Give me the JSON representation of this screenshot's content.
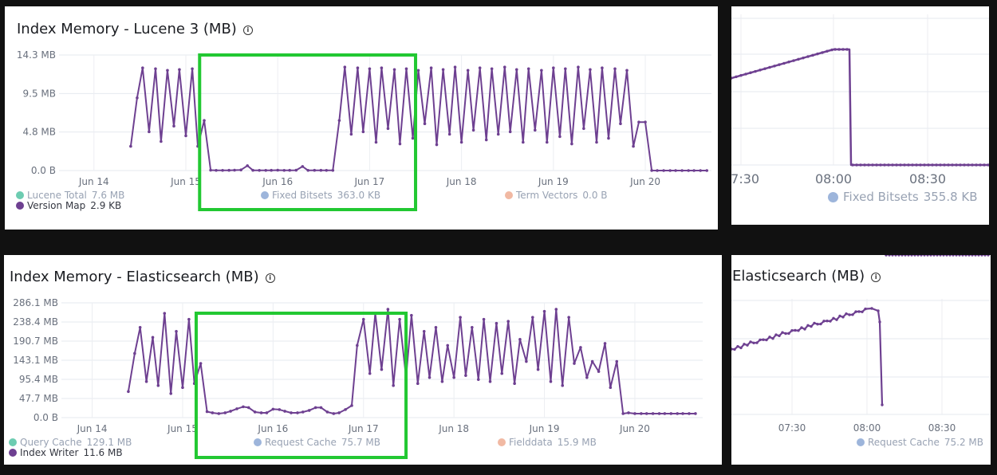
{
  "panels": {
    "lucene": {
      "title": "Index Memory - Lucene 3 (MB)",
      "legend": [
        {
          "name": "Lucene Total",
          "value": "7.6 MB",
          "color": "#6dccb1"
        },
        {
          "name": "Version Map",
          "value": "2.9 KB",
          "color": "#6e4091"
        },
        {
          "name": "Fixed Bitsets",
          "value": "363.0 KB",
          "color": "#9db5db"
        },
        {
          "name": "Term Vectors",
          "value": "0.0 B",
          "color": "#f1b9a3"
        }
      ]
    },
    "lucene_zoom": {
      "legend": {
        "name": "Fixed Bitsets",
        "value": "355.8 KB",
        "color": "#9db5db"
      }
    },
    "es": {
      "title": "Index Memory - Elasticsearch (MB)",
      "legend": [
        {
          "name": "Query Cache",
          "value": "129.1 MB",
          "color": "#6dccb1"
        },
        {
          "name": "Index Writer",
          "value": "11.6 MB",
          "color": "#6e4091"
        },
        {
          "name": "Request Cache",
          "value": "75.7 MB",
          "color": "#9db5db"
        },
        {
          "name": "Fielddata",
          "value": "15.9 MB",
          "color": "#f1b9a3"
        }
      ]
    },
    "es_zoom": {
      "title": "Elasticsearch (MB)",
      "legend": {
        "name": "Request Cache",
        "value": "75.2 MB",
        "color": "#9db5db"
      }
    }
  },
  "chart_data": [
    {
      "type": "line",
      "title": "Index Memory - Lucene 3 (MB)",
      "x_ticks": [
        "Jun 14",
        "Jun 15",
        "Jun 16",
        "Jun 17",
        "Jun 18",
        "Jun 19",
        "Jun 20"
      ],
      "y_ticks": [
        "0.0 B",
        "4.8 MB",
        "9.5 MB",
        "14.3 MB"
      ],
      "ylim": [
        0,
        14.3
      ],
      "xlim": [
        13.62,
        20.72
      ],
      "grid": true,
      "highlight_range": [
        15.15,
        17.5
      ],
      "highlight_color": "#22c832",
      "series": [
        {
          "color": "#6e4091",
          "x": [
            14.4,
            14.47,
            14.53,
            14.6,
            14.67,
            14.73,
            14.8,
            14.87,
            14.93,
            15.0,
            15.07,
            15.13,
            15.2,
            15.27,
            15.33,
            15.4,
            15.47,
            15.53,
            15.6,
            15.67,
            15.73,
            15.8,
            15.87,
            15.93,
            16.0,
            16.07,
            16.13,
            16.2,
            16.27,
            16.33,
            16.4,
            16.47,
            16.53,
            16.6,
            16.67,
            16.73,
            16.8,
            16.87,
            16.93,
            17.0,
            17.07,
            17.13,
            17.2,
            17.27,
            17.33,
            17.4,
            17.47,
            17.53,
            17.6,
            17.67,
            17.73,
            17.8,
            17.87,
            17.93,
            18.0,
            18.07,
            18.13,
            18.2,
            18.27,
            18.33,
            18.4,
            18.47,
            18.53,
            18.6,
            18.67,
            18.73,
            18.8,
            18.87,
            18.93,
            19.0,
            19.07,
            19.13,
            19.2,
            19.27,
            19.33,
            19.4,
            19.47,
            19.53,
            19.6,
            19.67,
            19.73,
            19.8,
            19.87,
            19.93,
            20.0,
            20.07,
            20.13,
            20.2,
            20.27,
            20.33,
            20.4,
            20.47,
            20.53,
            20.6,
            20.67
          ],
          "y": [
            3.0,
            9.0,
            12.7,
            4.8,
            12.6,
            3.6,
            12.4,
            5.5,
            12.5,
            4.3,
            12.6,
            3.0,
            6.2,
            0.05,
            0.02,
            0.02,
            0.03,
            0.05,
            0.08,
            0.6,
            0.03,
            0.02,
            0.02,
            0.03,
            0.05,
            0.02,
            0.03,
            0.04,
            0.5,
            0.02,
            0.03,
            0.03,
            0.02,
            0.02,
            6.2,
            12.8,
            4.5,
            12.7,
            4.8,
            12.6,
            3.5,
            12.7,
            5.2,
            12.5,
            3.3,
            12.6,
            4.0,
            12.4,
            5.8,
            12.7,
            3.2,
            12.5,
            4.5,
            12.8,
            3.5,
            12.4,
            5.0,
            12.7,
            3.8,
            12.6,
            4.5,
            12.8,
            4.8,
            12.5,
            3.5,
            12.6,
            5.0,
            12.4,
            3.5,
            12.7,
            4.2,
            12.6,
            3.3,
            12.8,
            5.2,
            12.5,
            3.5,
            12.7,
            4.0,
            12.6,
            5.8,
            12.4,
            3.0,
            6.0,
            6.0,
            0.01,
            0.0,
            0.0,
            0.0,
            0.0,
            0.0,
            0.0,
            0.0,
            0.0,
            0.0
          ]
        }
      ]
    },
    {
      "type": "line",
      "x_ticks": [
        "07:30",
        "08:00",
        "08:30"
      ],
      "series": [
        {
          "name": "Fixed Bitsets",
          "color": "#6e4091",
          "x": [
            "07:08",
            "07:55",
            "08:05",
            "08:06",
            "08:40"
          ],
          "y": [
            "rising",
            "peak",
            "peak",
            "drop",
            "flat-low"
          ]
        }
      ]
    },
    {
      "type": "line",
      "title": "Index Memory - Elasticsearch (MB)",
      "x_ticks": [
        "Jun 14",
        "Jun 15",
        "Jun 16",
        "Jun 17",
        "Jun 18",
        "Jun 19",
        "Jun 20"
      ],
      "y_ticks": [
        "0.0 B",
        "47.7 MB",
        "95.4 MB",
        "143.1 MB",
        "190.7 MB",
        "238.4 MB",
        "286.1 MB"
      ],
      "ylim": [
        0,
        286.1
      ],
      "xlim": [
        13.66,
        20.75
      ],
      "grid": true,
      "highlight_range": [
        15.15,
        17.47
      ],
      "highlight_color": "#22c832",
      "series": [
        {
          "color": "#6e4091",
          "x": [
            14.4,
            14.47,
            14.53,
            14.6,
            14.67,
            14.73,
            14.8,
            14.87,
            14.93,
            15.0,
            15.07,
            15.13,
            15.2,
            15.27,
            15.33,
            15.4,
            15.47,
            15.53,
            15.6,
            15.67,
            15.73,
            15.8,
            15.87,
            15.93,
            16.0,
            16.07,
            16.13,
            16.2,
            16.27,
            16.33,
            16.4,
            16.47,
            16.53,
            16.6,
            16.67,
            16.73,
            16.8,
            16.87,
            16.93,
            17.0,
            17.07,
            17.13,
            17.2,
            17.27,
            17.33,
            17.4,
            17.47,
            17.53,
            17.6,
            17.67,
            17.73,
            17.8,
            17.87,
            17.93,
            18.0,
            18.07,
            18.13,
            18.2,
            18.27,
            18.33,
            18.4,
            18.47,
            18.53,
            18.6,
            18.67,
            18.73,
            18.8,
            18.87,
            18.93,
            19.0,
            19.07,
            19.13,
            19.2,
            19.27,
            19.33,
            19.4,
            19.47,
            19.53,
            19.6,
            19.67,
            19.73,
            19.8,
            19.87,
            19.93,
            20.0,
            20.07,
            20.13,
            20.2,
            20.27,
            20.33,
            20.4,
            20.47,
            20.53,
            20.6,
            20.67
          ],
          "y": [
            65,
            160,
            225,
            90,
            200,
            80,
            260,
            60,
            215,
            75,
            245,
            85,
            135,
            15,
            12,
            10,
            12,
            16,
            22,
            27,
            25,
            14,
            12,
            12,
            21,
            20,
            16,
            12,
            12,
            14,
            18,
            25,
            25,
            14,
            10,
            12,
            20,
            30,
            180,
            245,
            110,
            260,
            120,
            270,
            80,
            245,
            100,
            255,
            85,
            215,
            100,
            225,
            90,
            180,
            100,
            250,
            105,
            225,
            95,
            245,
            90,
            235,
            110,
            240,
            85,
            195,
            140,
            250,
            120,
            265,
            90,
            270,
            80,
            250,
            135,
            175,
            100,
            140,
            115,
            185,
            75,
            140,
            10,
            12,
            10,
            10,
            10,
            10,
            10,
            10,
            10,
            10,
            10,
            10,
            10
          ]
        }
      ]
    },
    {
      "type": "line",
      "title": "Elasticsearch (MB)",
      "x_ticks": [
        "07:30",
        "08:00",
        "08:30"
      ],
      "series": [
        {
          "name": "Request Cache",
          "color": "#6e4091",
          "x": [
            "07:08",
            "07:55",
            "08:04",
            "08:06",
            "08:40"
          ],
          "y": [
            "rising",
            "peak",
            "peak",
            "drop",
            "flat-low"
          ]
        }
      ]
    }
  ]
}
